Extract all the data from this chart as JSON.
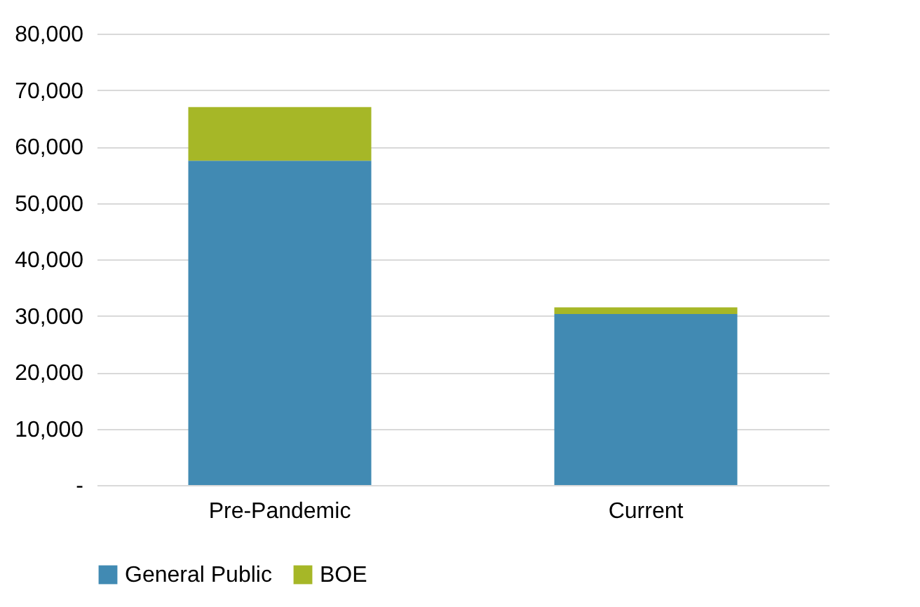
{
  "chart_data": {
    "type": "bar",
    "stacked": true,
    "categories": [
      "Pre-Pandemic",
      "Current"
    ],
    "series": [
      {
        "name": "General Public",
        "color": "#418ab3",
        "values": [
          57500,
          30300
        ]
      },
      {
        "name": "BOE",
        "color": "#a6b727",
        "values": [
          9500,
          1200
        ]
      }
    ],
    "ylim": [
      0,
      80000
    ],
    "yticks": [
      {
        "value": 0,
        "label": "-"
      },
      {
        "value": 10000,
        "label": "10,000"
      },
      {
        "value": 20000,
        "label": "20,000"
      },
      {
        "value": 30000,
        "label": "30,000"
      },
      {
        "value": 40000,
        "label": "40,000"
      },
      {
        "value": 50000,
        "label": "50,000"
      },
      {
        "value": 60000,
        "label": "60,000"
      },
      {
        "value": 70000,
        "label": "70,000"
      },
      {
        "value": 80000,
        "label": "80,000"
      }
    ],
    "grid": "y",
    "legend": "bottom"
  }
}
